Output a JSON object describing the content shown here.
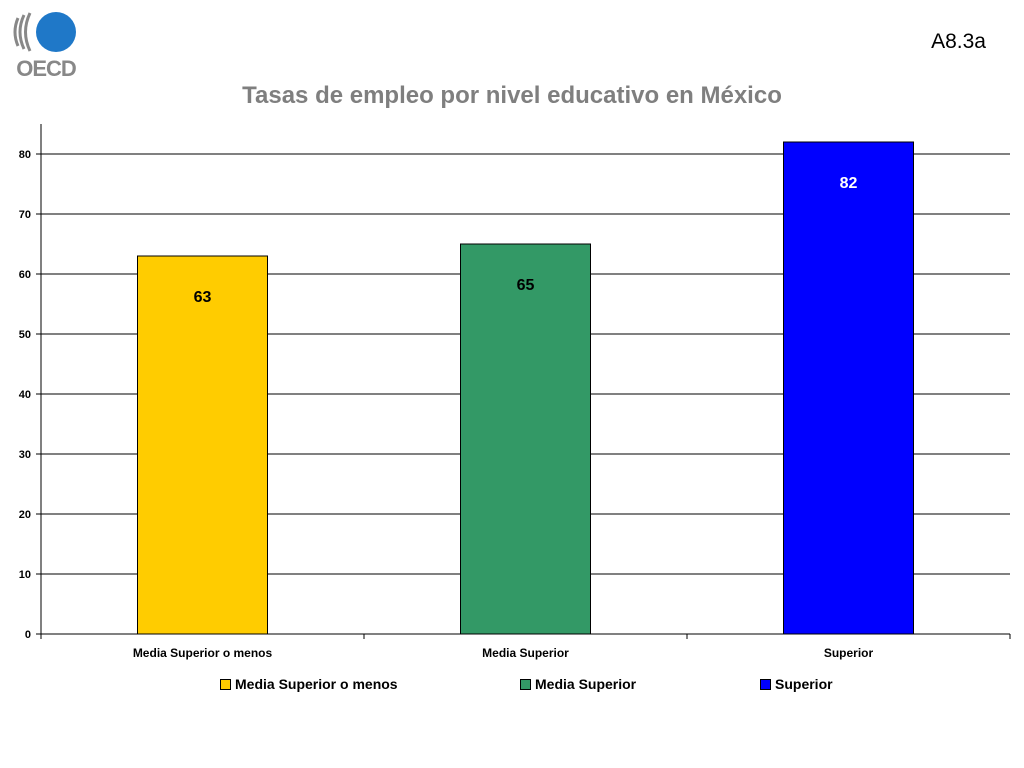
{
  "slide": {
    "code": "A8.3a",
    "logo_text": "OECD"
  },
  "chart_data": {
    "type": "bar",
    "title": "Tasas de empleo por nivel educativo en México",
    "xlabel": "",
    "ylabel": "",
    "categories": [
      "Media Superior o menos",
      "Media Superior",
      "Superior"
    ],
    "values": [
      63,
      65,
      82
    ],
    "data_labels": [
      "63",
      "65",
      "82"
    ],
    "colors": [
      "#FFCC00",
      "#339966",
      "#0000FF"
    ],
    "label_colors": [
      "#000000",
      "#000000",
      "#FFFFFF"
    ],
    "ylim": [
      0,
      85
    ],
    "yticks": [
      0,
      10,
      20,
      30,
      40,
      50,
      60,
      70,
      80
    ],
    "grid": true,
    "legend": {
      "position": "bottom",
      "entries": [
        "Media Superior o menos",
        "Media Superior",
        "Superior"
      ]
    }
  }
}
